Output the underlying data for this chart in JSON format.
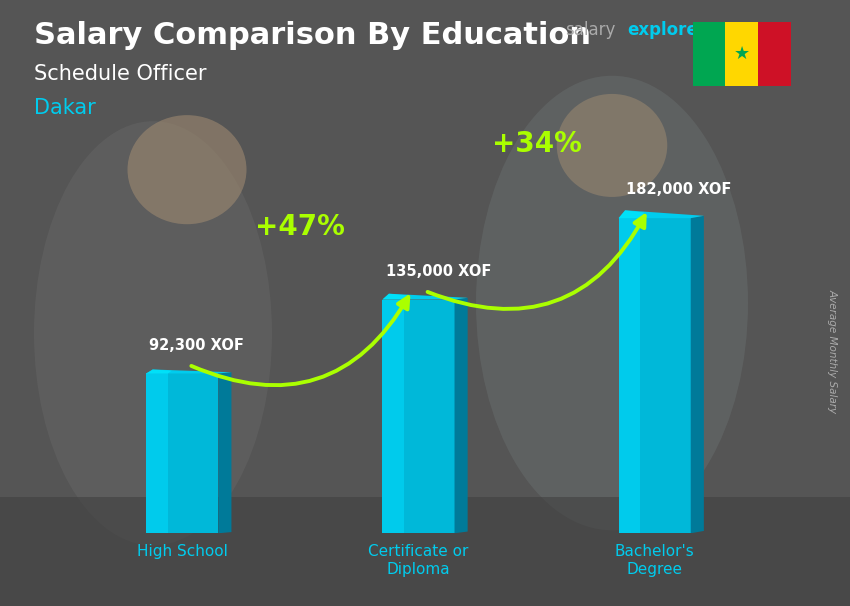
{
  "title": "Salary Comparison By Education",
  "subtitle": "Schedule Officer",
  "location": "Dakar",
  "ylabel": "Average Monthly Salary",
  "categories": [
    "High School",
    "Certificate or\nDiploma",
    "Bachelor's\nDegree"
  ],
  "values": [
    92300,
    135000,
    182000
  ],
  "value_labels": [
    "92,300 XOF",
    "135,000 XOF",
    "182,000 XOF"
  ],
  "pct_labels": [
    "+47%",
    "+34%"
  ],
  "bar_color_front": "#00b8d9",
  "bar_color_front_light": "#00d4f5",
  "bar_color_side": "#007a99",
  "bar_color_top": "#00ccee",
  "bar_color_top_light": "#00eeff",
  "bar_width": 0.55,
  "bg_color": "#606060",
  "title_color": "#ffffff",
  "subtitle_color": "#ffffff",
  "location_color": "#00ccee",
  "value_label_color": "#ffffff",
  "pct_color": "#aaff00",
  "arrow_color": "#aaff00",
  "xlabel_color": "#00ccee",
  "ylabel_color": "#aaaaaa",
  "website_salary_color": "#aaaaaa",
  "website_explorer_color": "#00ccee",
  "website_com_color": "#aaaaaa",
  "flag_green": "#00a651",
  "flag_yellow": "#ffd700",
  "flag_red": "#ce1126",
  "flag_star": "#00a651"
}
